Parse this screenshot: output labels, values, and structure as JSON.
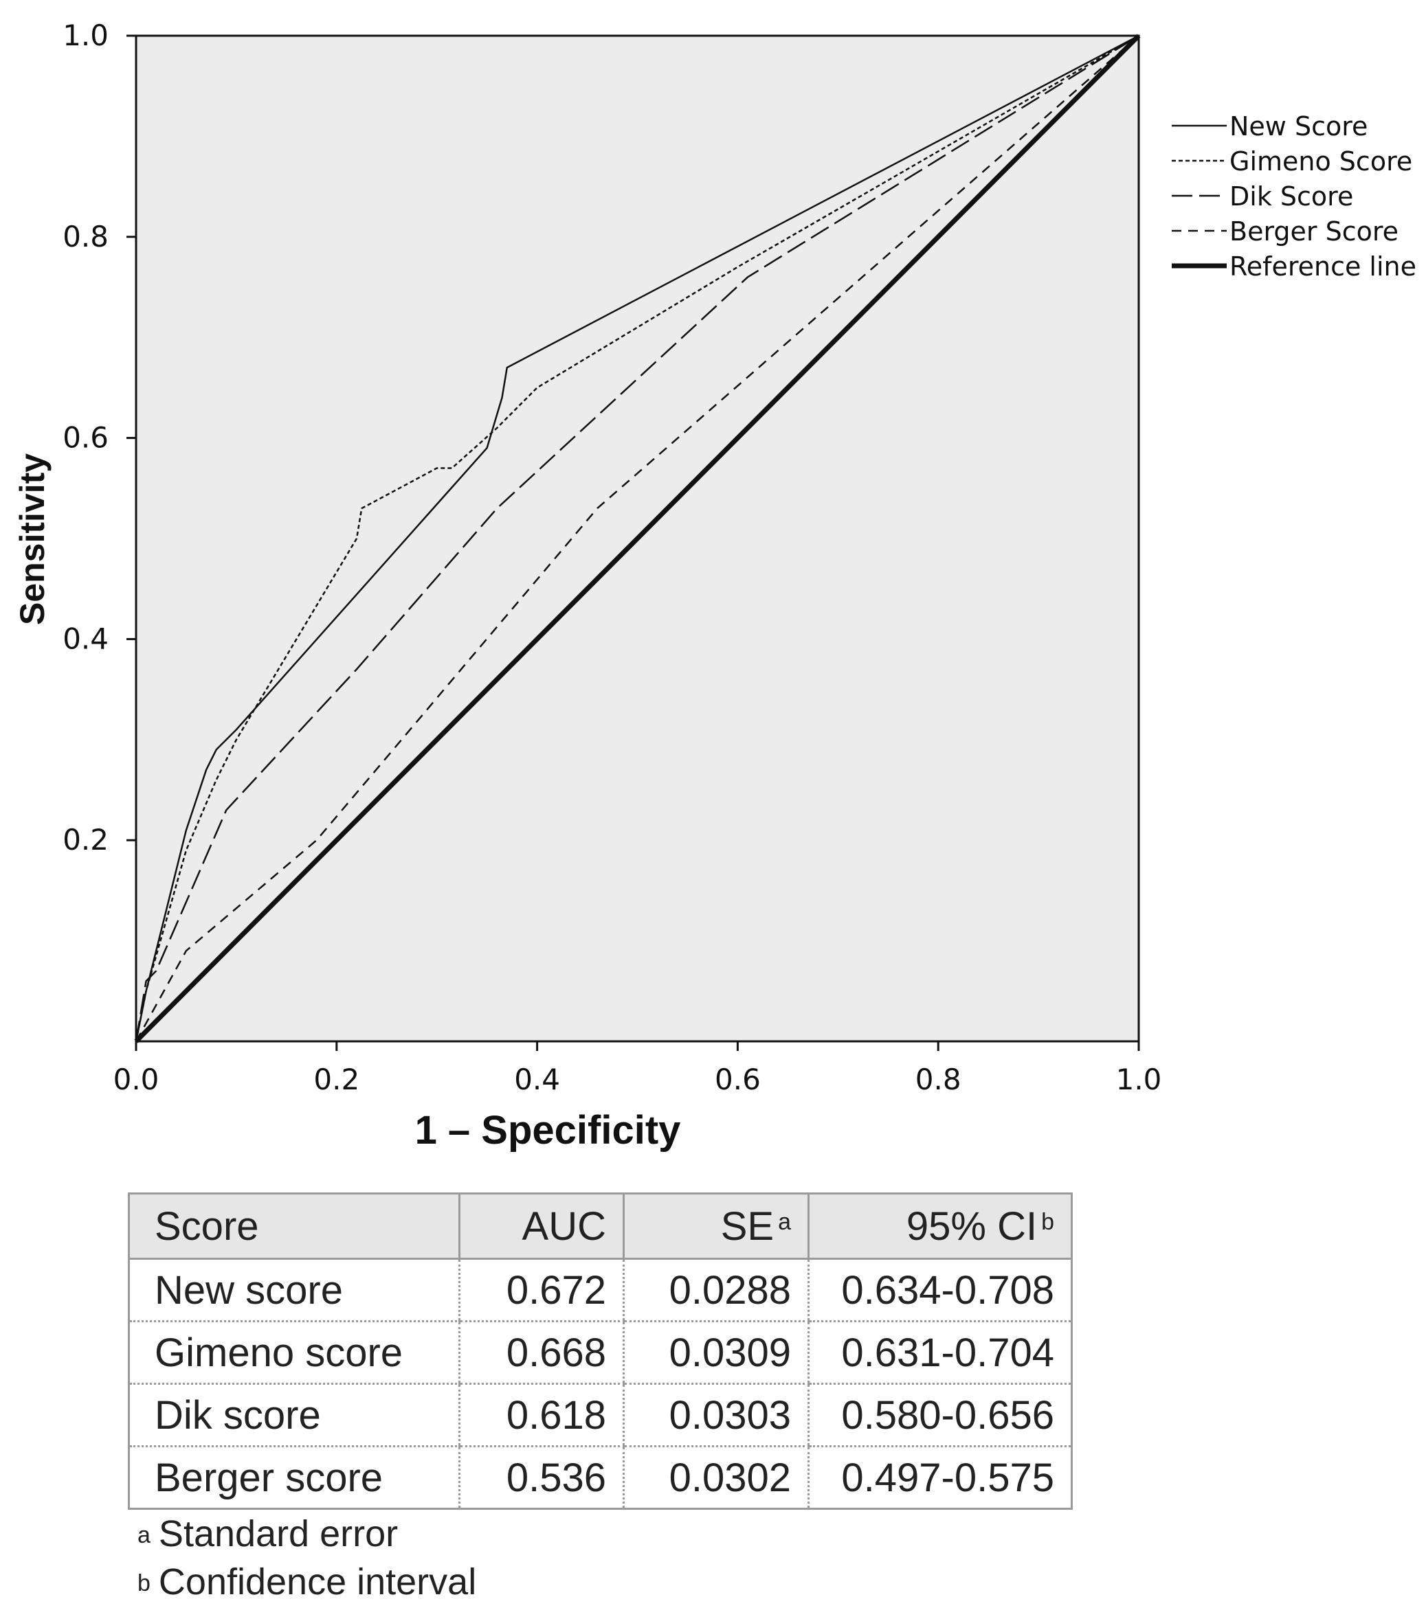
{
  "chart_data": {
    "type": "line",
    "xlabel": "1 – Specificity",
    "ylabel": "Sensitivity",
    "xlim": [
      0,
      1
    ],
    "ylim": [
      0,
      1
    ],
    "xticks": [
      "0.0",
      "0.2",
      "0.4",
      "0.6",
      "0.8",
      "1.0"
    ],
    "yticks": [
      "0.2",
      "0.4",
      "0.6",
      "0.8",
      "1.0"
    ],
    "grid": false,
    "legend_position": "right",
    "series": [
      {
        "name": "New Score",
        "style": "solid",
        "x": [
          0,
          0.01,
          0.03,
          0.05,
          0.07,
          0.08,
          0.1,
          0.35,
          0.365,
          0.37,
          1.0
        ],
        "y": [
          0,
          0.05,
          0.13,
          0.21,
          0.27,
          0.29,
          0.31,
          0.59,
          0.64,
          0.67,
          1.0
        ]
      },
      {
        "name": "Gimeno Score",
        "style": "dotted",
        "x": [
          0,
          0.01,
          0.03,
          0.05,
          0.08,
          0.1,
          0.22,
          0.225,
          0.3,
          0.315,
          0.36,
          0.4,
          0.6,
          1.0
        ],
        "y": [
          0,
          0.05,
          0.12,
          0.19,
          0.26,
          0.3,
          0.5,
          0.53,
          0.57,
          0.57,
          0.61,
          0.65,
          0.77,
          1.0
        ]
      },
      {
        "name": "Dik Score",
        "style": "longdash",
        "x": [
          0,
          0.01,
          0.02,
          0.09,
          0.22,
          0.36,
          0.61,
          1.0
        ],
        "y": [
          0,
          0.06,
          0.07,
          0.23,
          0.37,
          0.53,
          0.76,
          1.0
        ]
      },
      {
        "name": "Berger Score",
        "style": "dashed",
        "x": [
          0,
          0.05,
          0.18,
          0.46,
          1.0
        ],
        "y": [
          0,
          0.09,
          0.2,
          0.53,
          1.0
        ]
      },
      {
        "name": "Reference line",
        "style": "thick",
        "x": [
          0,
          1.0
        ],
        "y": [
          0,
          1.0
        ]
      }
    ]
  },
  "table": {
    "headers": [
      "Score",
      "AUC",
      "SE",
      "95% CI"
    ],
    "header_marks": [
      "",
      "",
      "a",
      "b"
    ],
    "rows": [
      [
        "New score",
        "0.672",
        "0.0288",
        "0.634-0.708"
      ],
      [
        "Gimeno score",
        "0.668",
        "0.0309",
        "0.631-0.704"
      ],
      [
        "Dik score",
        "0.618",
        "0.0303",
        "0.580-0.656"
      ],
      [
        "Berger score",
        "0.536",
        "0.0302",
        "0.497-0.575"
      ]
    ]
  },
  "footnotes": [
    {
      "mark": "a",
      "text": "Standard error"
    },
    {
      "mark": "b",
      "text": "Confidence interval"
    }
  ],
  "colors": {
    "plot_background": "#ececec",
    "line": "#111111",
    "table_header_background": "#e6e6e6",
    "table_border": "#9a9a9a"
  }
}
